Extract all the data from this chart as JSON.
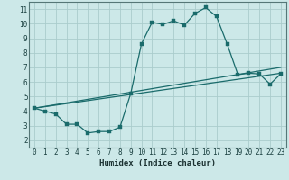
{
  "xlabel": "Humidex (Indice chaleur)",
  "bg_color": "#cce8e8",
  "grid_color": "#aacccc",
  "line_color": "#1a6b6b",
  "xlim": [
    -0.5,
    23.5
  ],
  "ylim": [
    1.5,
    11.5
  ],
  "xticks": [
    0,
    1,
    2,
    3,
    4,
    5,
    6,
    7,
    8,
    9,
    10,
    11,
    12,
    13,
    14,
    15,
    16,
    17,
    18,
    19,
    20,
    21,
    22,
    23
  ],
  "yticks": [
    2,
    3,
    4,
    5,
    6,
    7,
    8,
    9,
    10,
    11
  ],
  "curve_x": [
    0,
    1,
    2,
    3,
    4,
    5,
    6,
    7,
    8,
    9,
    10,
    11,
    12,
    13,
    14,
    15,
    16,
    17,
    18,
    19,
    20,
    21,
    22,
    23
  ],
  "curve_y": [
    4.2,
    4.0,
    3.8,
    3.1,
    3.1,
    2.5,
    2.6,
    2.6,
    2.9,
    5.2,
    8.6,
    10.1,
    9.95,
    10.2,
    9.9,
    10.7,
    11.1,
    10.5,
    8.6,
    6.5,
    6.6,
    6.55,
    5.85,
    6.55
  ],
  "line2_x": [
    0,
    23
  ],
  "line2_y": [
    4.2,
    6.6
  ],
  "line3_x": [
    0,
    23
  ],
  "line3_y": [
    4.2,
    7.0
  ]
}
